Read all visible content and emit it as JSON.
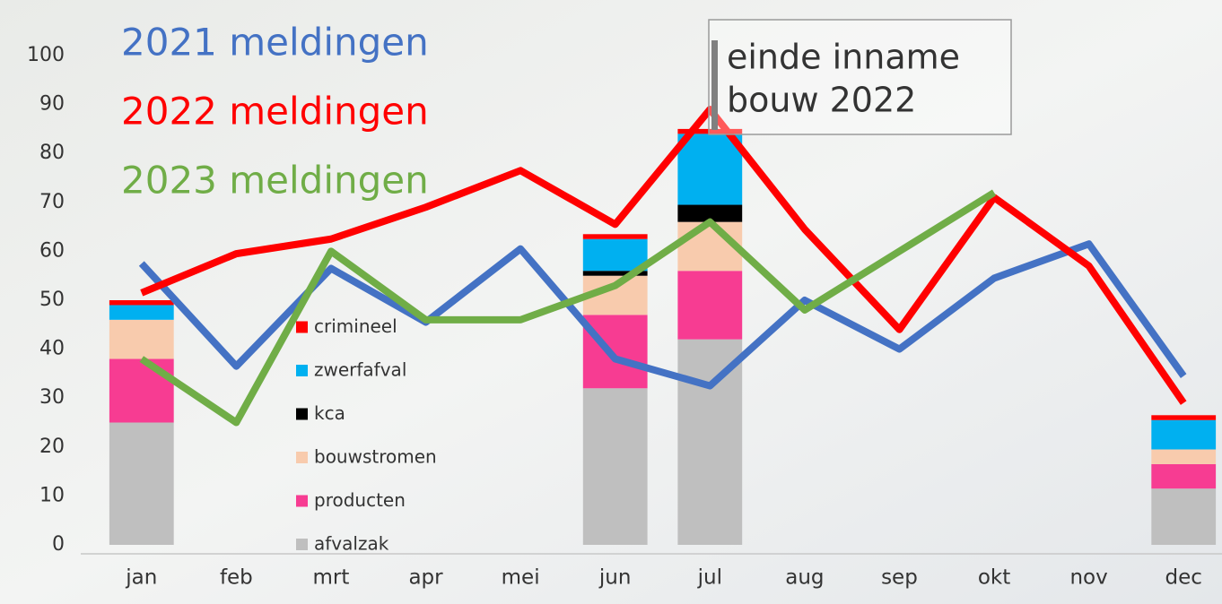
{
  "chart_data": {
    "type": "combo",
    "categories": [
      "jan",
      "feb",
      "mrt",
      "apr",
      "mei",
      "jun",
      "jul",
      "aug",
      "sep",
      "okt",
      "nov",
      "dec"
    ],
    "ylim": [
      0,
      100
    ],
    "yticks": [
      0,
      10,
      20,
      30,
      40,
      50,
      60,
      70,
      80,
      90,
      100
    ],
    "annotation": [
      "einde inname",
      "bouw 2022"
    ],
    "bar_series": [
      {
        "name": "afvalzak",
        "color": "#bfbfbf",
        "values": [
          25,
          null,
          null,
          null,
          null,
          32,
          42,
          null,
          null,
          null,
          null,
          11.5
        ]
      },
      {
        "name": "producten",
        "color": "#f73c92",
        "values": [
          13,
          null,
          null,
          null,
          null,
          15,
          14,
          null,
          null,
          null,
          null,
          5
        ]
      },
      {
        "name": "bouwstromen",
        "color": "#f8cbad",
        "values": [
          8,
          null,
          null,
          null,
          null,
          8,
          10,
          null,
          null,
          null,
          null,
          3
        ]
      },
      {
        "name": "kca",
        "color": "#000000",
        "values": [
          0,
          null,
          null,
          null,
          null,
          1,
          3.5,
          null,
          null,
          null,
          null,
          0
        ]
      },
      {
        "name": "zwerfafval",
        "color": "#00b0f0",
        "values": [
          3,
          null,
          null,
          null,
          null,
          6.5,
          14.5,
          null,
          null,
          null,
          null,
          6
        ]
      },
      {
        "name": "crimineel",
        "color": "#ff0000",
        "values": [
          1,
          null,
          null,
          null,
          null,
          1,
          1,
          null,
          null,
          null,
          null,
          1
        ]
      }
    ],
    "line_series": [
      {
        "name": "2021 meldingen",
        "color": "#4472c4",
        "values": [
          57.5,
          36.5,
          56.5,
          45.5,
          60.5,
          38,
          32.5,
          50,
          40,
          54.5,
          61.5,
          34.5
        ]
      },
      {
        "name": "2022 meldingen",
        "color": "#ff0000",
        "values": [
          51.5,
          59.5,
          62.5,
          69,
          76.5,
          65.5,
          89,
          64.5,
          44,
          71,
          57,
          29
        ]
      },
      {
        "name": "2023 meldingen",
        "color": "#70ad47",
        "values": [
          38,
          25,
          60,
          46,
          46,
          53,
          66,
          48,
          60,
          72,
          null,
          null
        ]
      }
    ]
  }
}
